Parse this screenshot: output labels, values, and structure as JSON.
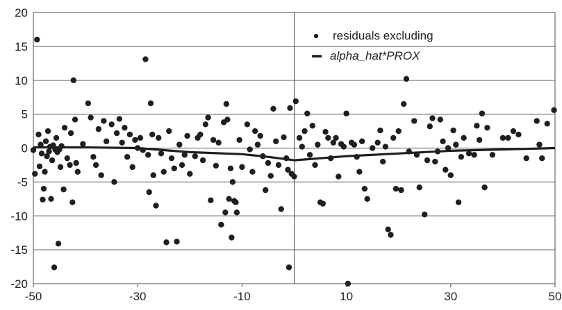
{
  "chart_data": {
    "type": "scatter",
    "title": "",
    "xlabel": "",
    "ylabel": "",
    "xlim": [
      -50,
      50
    ],
    "ylim": [
      -20,
      20
    ],
    "x_ticks": [
      -50,
      -30,
      -10,
      10,
      30,
      50
    ],
    "y_ticks": [
      20,
      15,
      10,
      5,
      0,
      -5,
      -10,
      -15,
      -20
    ],
    "horizontal_grid": true,
    "vertical_reference_line_x": 0,
    "legend_position": "top-right",
    "colors": {
      "points": "#1f1f1f",
      "line": "#1f1f1f",
      "grid": "#4d4d4d"
    },
    "series": [
      {
        "name": "residuals excluding",
        "kind": "scatter",
        "points": [
          [
            -50,
            -0.3
          ],
          [
            -49.7,
            -3.8
          ],
          [
            -49.3,
            16.0
          ],
          [
            -49.0,
            2.0
          ],
          [
            -48.8,
            -2.7
          ],
          [
            -48.6,
            0.5
          ],
          [
            -48.4,
            -0.8
          ],
          [
            -48.2,
            -7.6
          ],
          [
            -48.0,
            -6.0
          ],
          [
            -47.8,
            -3.5
          ],
          [
            -47.6,
            1.0
          ],
          [
            -47.4,
            -1.2
          ],
          [
            -47.2,
            2.5
          ],
          [
            -47.0,
            -0.5
          ],
          [
            -46.8,
            0.2
          ],
          [
            -46.6,
            -7.5
          ],
          [
            -46.4,
            -1.8
          ],
          [
            -46.2,
            0.4
          ],
          [
            -46.0,
            -17.6
          ],
          [
            -45.8,
            -0.2
          ],
          [
            -45.6,
            1.5
          ],
          [
            -45.4,
            -0.6
          ],
          [
            -45.2,
            -14.1
          ],
          [
            -45.0,
            -0.2
          ],
          [
            -44.8,
            -2.8
          ],
          [
            -44.6,
            0.3
          ],
          [
            -44.2,
            -6.1
          ],
          [
            -44.0,
            3.0
          ],
          [
            -43.5,
            -1.5
          ],
          [
            -43.0,
            -2.5
          ],
          [
            -42.8,
            2.2
          ],
          [
            -42.5,
            -8.0
          ],
          [
            -42.3,
            10.0
          ],
          [
            -42.0,
            4.2
          ],
          [
            -41.8,
            -2.2
          ],
          [
            -41.5,
            -3.5
          ],
          [
            -40.5,
            0.6
          ],
          [
            -39.5,
            6.6
          ],
          [
            -39.0,
            4.5
          ],
          [
            -38.5,
            -1.3
          ],
          [
            -38.0,
            -2.5
          ],
          [
            -37.5,
            2.8
          ],
          [
            -37.0,
            -4.0
          ],
          [
            -36.5,
            4.0
          ],
          [
            -36.0,
            1.0
          ],
          [
            -35.0,
            3.5
          ],
          [
            -34.5,
            -5.0
          ],
          [
            -34.0,
            2.2
          ],
          [
            -33.5,
            4.3
          ],
          [
            -33.0,
            0.8
          ],
          [
            -32.5,
            3.0
          ],
          [
            -32.0,
            -1.3
          ],
          [
            -31.5,
            2.0
          ],
          [
            -31.0,
            -2.8
          ],
          [
            -30.5,
            1.2
          ],
          [
            -30.0,
            0.0
          ],
          [
            -29.5,
            1.5
          ],
          [
            -29.0,
            -0.3
          ],
          [
            -28.5,
            13.1
          ],
          [
            -28.0,
            -1.0
          ],
          [
            -27.8,
            -6.5
          ],
          [
            -27.5,
            6.6
          ],
          [
            -27.2,
            2.0
          ],
          [
            -27.0,
            -4.0
          ],
          [
            -26.5,
            -8.5
          ],
          [
            -26.0,
            1.5
          ],
          [
            -25.5,
            -0.8
          ],
          [
            -25.0,
            -3.5
          ],
          [
            -24.5,
            -13.9
          ],
          [
            -24.0,
            2.5
          ],
          [
            -23.5,
            -1.5
          ],
          [
            -23.0,
            -3.0
          ],
          [
            -22.5,
            -13.8
          ],
          [
            -22.0,
            0.5
          ],
          [
            -21.5,
            -2.5
          ],
          [
            -21.0,
            -1.0
          ],
          [
            -20.5,
            1.8
          ],
          [
            -20.0,
            -3.8
          ],
          [
            -19.0,
            -1.2
          ],
          [
            -18.5,
            1.5
          ],
          [
            -18.0,
            2.0
          ],
          [
            -17.5,
            -1.8
          ],
          [
            -17.0,
            3.5
          ],
          [
            -16.5,
            4.5
          ],
          [
            -16.0,
            -7.7
          ],
          [
            -15.5,
            1.2
          ],
          [
            -15.0,
            -2.6
          ],
          [
            -14.5,
            0.8
          ],
          [
            -14.0,
            -11.3
          ],
          [
            -13.5,
            3.8
          ],
          [
            -13.2,
            -9.5
          ],
          [
            -13.0,
            6.5
          ],
          [
            -12.8,
            4.2
          ],
          [
            -12.5,
            -7.5
          ],
          [
            -12.2,
            -3.0
          ],
          [
            -12.0,
            -13.2
          ],
          [
            -11.8,
            -5.0
          ],
          [
            -11.5,
            -7.8
          ],
          [
            -11.2,
            -8.0
          ],
          [
            -11.0,
            -9.5
          ],
          [
            -10.5,
            1.2
          ],
          [
            -10.0,
            -2.8
          ],
          [
            -9.0,
            3.5
          ],
          [
            -8.5,
            -0.2
          ],
          [
            -8.0,
            -3.5
          ],
          [
            -7.5,
            2.5
          ],
          [
            -7.0,
            0.5
          ],
          [
            -6.5,
            1.8
          ],
          [
            -6.0,
            -1.2
          ],
          [
            -5.5,
            -6.2
          ],
          [
            -5.0,
            -2.2
          ],
          [
            -4.5,
            -4.1
          ],
          [
            -4.0,
            5.8
          ],
          [
            -3.5,
            1.0
          ],
          [
            -3.0,
            -2.5
          ],
          [
            -2.5,
            -9.0
          ],
          [
            -2.0,
            1.6
          ],
          [
            -1.5,
            -1.5
          ],
          [
            -1.2,
            -3.2
          ],
          [
            -1.0,
            -17.6
          ],
          [
            -0.8,
            5.9
          ],
          [
            -0.5,
            -3.8
          ],
          [
            0.0,
            -4.2
          ],
          [
            0.3,
            6.9
          ],
          [
            1.0,
            1.5
          ],
          [
            1.5,
            0.2
          ],
          [
            2.0,
            2.5
          ],
          [
            2.5,
            5.1
          ],
          [
            3.0,
            -1.0
          ],
          [
            3.5,
            3.3
          ],
          [
            4.0,
            -2.5
          ],
          [
            4.5,
            0.5
          ],
          [
            5.0,
            -8.0
          ],
          [
            5.5,
            -8.2
          ],
          [
            6.0,
            2.4
          ],
          [
            6.5,
            1.5
          ],
          [
            7.0,
            -1.5
          ],
          [
            7.5,
            0.8
          ],
          [
            8.0,
            1.5
          ],
          [
            8.5,
            -4.2
          ],
          [
            9.0,
            0.6
          ],
          [
            9.5,
            0.2
          ],
          [
            10.0,
            5.1
          ],
          [
            10.3,
            -20.0
          ],
          [
            11.0,
            0.8
          ],
          [
            11.5,
            0.5
          ],
          [
            12.0,
            -1.3
          ],
          [
            12.5,
            -3.5
          ],
          [
            13.0,
            1.0
          ],
          [
            13.5,
            -6.0
          ],
          [
            14.0,
            -7.5
          ],
          [
            15.0,
            0.0
          ],
          [
            16.0,
            0.8
          ],
          [
            16.5,
            2.6
          ],
          [
            17.0,
            -2.0
          ],
          [
            17.5,
            0.2
          ],
          [
            18.0,
            -12.0
          ],
          [
            18.5,
            -12.8
          ],
          [
            19.0,
            1.5
          ],
          [
            19.5,
            -6.0
          ],
          [
            20.0,
            2.5
          ],
          [
            20.5,
            -6.2
          ],
          [
            21.0,
            6.5
          ],
          [
            21.5,
            10.2
          ],
          [
            22.0,
            -0.5
          ],
          [
            23.0,
            4.0
          ],
          [
            23.5,
            -1.0
          ],
          [
            24.0,
            -5.8
          ],
          [
            25.0,
            -9.8
          ],
          [
            25.5,
            -1.8
          ],
          [
            26.0,
            3.2
          ],
          [
            26.5,
            4.4
          ],
          [
            27.0,
            -2.0
          ],
          [
            27.5,
            -0.5
          ],
          [
            28.0,
            4.2
          ],
          [
            28.5,
            1.0
          ],
          [
            29.0,
            -3.2
          ],
          [
            29.5,
            0.0
          ],
          [
            30.0,
            -4.0
          ],
          [
            30.5,
            2.6
          ],
          [
            31.0,
            0.5
          ],
          [
            31.5,
            -8.0
          ],
          [
            32.0,
            -1.3
          ],
          [
            32.5,
            1.5
          ],
          [
            33.5,
            -0.8
          ],
          [
            34.5,
            -1.0
          ],
          [
            35.0,
            3.3
          ],
          [
            35.5,
            1.2
          ],
          [
            36.0,
            5.1
          ],
          [
            36.5,
            -5.8
          ],
          [
            37.0,
            3.0
          ],
          [
            38.0,
            -1.0
          ],
          [
            40.0,
            1.5
          ],
          [
            41.0,
            1.5
          ],
          [
            42.0,
            2.5
          ],
          [
            43.0,
            2.0
          ],
          [
            44.5,
            -1.5
          ],
          [
            46.5,
            4.0
          ],
          [
            47.0,
            0.5
          ],
          [
            47.5,
            -1.5
          ],
          [
            48.5,
            3.6
          ],
          [
            49.8,
            5.6
          ]
        ]
      },
      {
        "name": "alpha_hat*PROX",
        "kind": "line",
        "points": [
          [
            -50,
            0.1
          ],
          [
            -40,
            0.1
          ],
          [
            -30,
            0.0
          ],
          [
            -20,
            -0.6
          ],
          [
            -10,
            -0.9
          ],
          [
            -5,
            -1.3
          ],
          [
            0,
            -1.8
          ],
          [
            5,
            -1.5
          ],
          [
            10,
            -1.2
          ],
          [
            20,
            -0.8
          ],
          [
            30,
            -0.4
          ],
          [
            40,
            -0.2
          ],
          [
            50,
            0.0
          ]
        ]
      }
    ],
    "legend": {
      "scatter_label": "residuals excluding",
      "line_label": "alpha_hat*PROX"
    }
  }
}
